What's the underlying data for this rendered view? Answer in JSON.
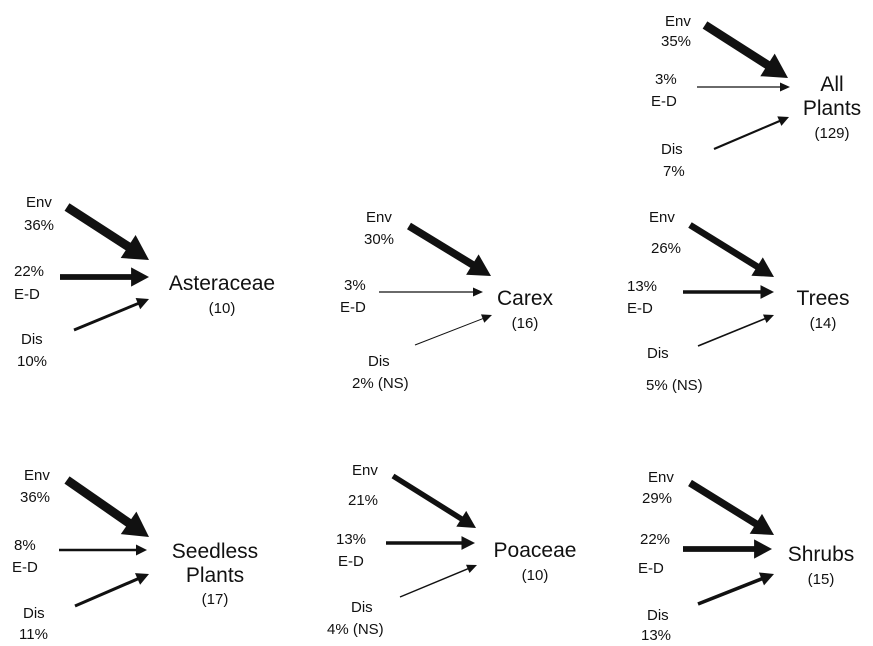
{
  "colors": {
    "ink": "#111111",
    "background": "#ffffff"
  },
  "panels": [
    {
      "id": "all-plants",
      "title_lines": [
        "All",
        "Plants"
      ],
      "count": "(129)",
      "env": {
        "label": "Env",
        "value": "35%",
        "weight": 35
      },
      "ed": {
        "label": "E-D",
        "value": "3%",
        "weight": 3
      },
      "dis": {
        "label": "Dis",
        "value": "7%",
        "weight": 7
      }
    },
    {
      "id": "asteraceae",
      "title_lines": [
        "Asteraceae"
      ],
      "count": "(10)",
      "env": {
        "label": "Env",
        "value": "36%",
        "weight": 36
      },
      "ed": {
        "label": "E-D",
        "value": "22%",
        "weight": 22
      },
      "dis": {
        "label": "Dis",
        "value": "10%",
        "weight": 10
      }
    },
    {
      "id": "carex",
      "title_lines": [
        "Carex"
      ],
      "count": "(16)",
      "env": {
        "label": "Env",
        "value": "30%",
        "weight": 30
      },
      "ed": {
        "label": "E-D",
        "value": "3%",
        "weight": 3
      },
      "dis": {
        "label": "Dis",
        "value": "2% (NS)",
        "weight": 2
      }
    },
    {
      "id": "trees",
      "title_lines": [
        "Trees"
      ],
      "count": "(14)",
      "env": {
        "label": "Env",
        "value": "26%",
        "weight": 26
      },
      "ed": {
        "label": "E-D",
        "value": "13%",
        "weight": 13
      },
      "dis": {
        "label": "Dis",
        "value": "5% (NS)",
        "weight": 5
      }
    },
    {
      "id": "seedless-plants",
      "title_lines": [
        "Seedless",
        "Plants"
      ],
      "count": "(17)",
      "env": {
        "label": "Env",
        "value": "36%",
        "weight": 36
      },
      "ed": {
        "label": "E-D",
        "value": "8%",
        "weight": 8
      },
      "dis": {
        "label": "Dis",
        "value": "11%",
        "weight": 11
      }
    },
    {
      "id": "poaceae",
      "title_lines": [
        "Poaceae"
      ],
      "count": "(10)",
      "env": {
        "label": "Env",
        "value": "21%",
        "weight": 21
      },
      "ed": {
        "label": "E-D",
        "value": "13%",
        "weight": 13
      },
      "dis": {
        "label": "Dis",
        "value": "4% (NS)",
        "weight": 4
      }
    },
    {
      "id": "shrubs",
      "title_lines": [
        "Shrubs"
      ],
      "count": "(15)",
      "env": {
        "label": "Env",
        "value": "29%",
        "weight": 29
      },
      "ed": {
        "label": "E-D",
        "value": "22%",
        "weight": 22
      },
      "dis": {
        "label": "Dis",
        "value": "13%",
        "weight": 13
      }
    }
  ]
}
